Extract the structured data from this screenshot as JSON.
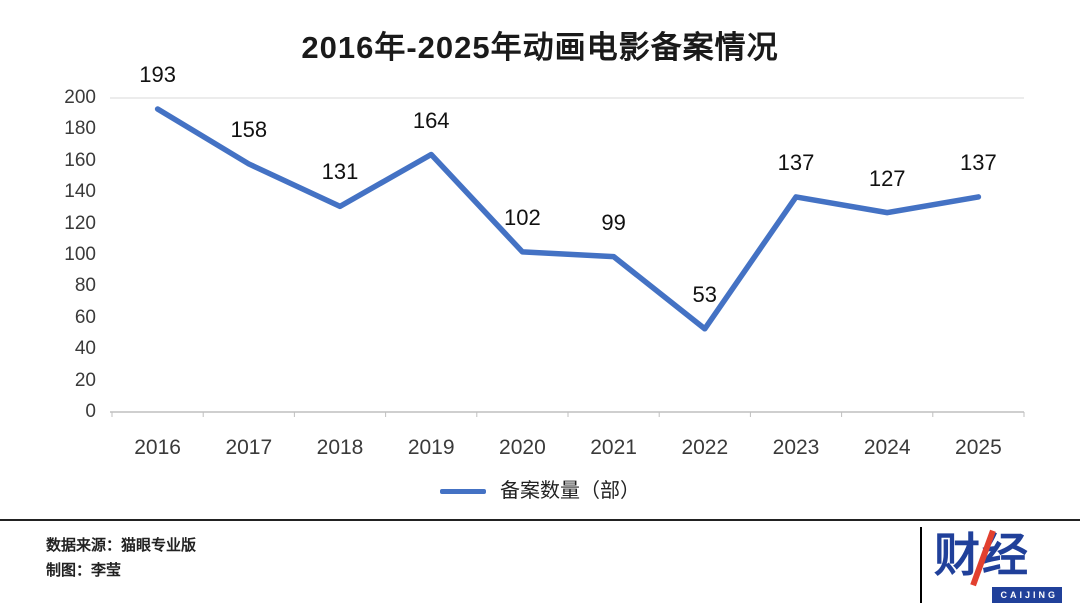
{
  "title": "2016年-2025年动画电影备案情况",
  "chart_data": {
    "type": "line",
    "title": "2016年-2025年动画电影备案情况",
    "categories": [
      "2016",
      "2017",
      "2018",
      "2019",
      "2020",
      "2021",
      "2022",
      "2023",
      "2024",
      "2025"
    ],
    "series": [
      {
        "name": "备案数量（部）",
        "values": [
          193,
          158,
          131,
          164,
          102,
          99,
          53,
          137,
          127,
          137
        ]
      }
    ],
    "ylim": [
      0,
      200
    ],
    "yticks": [
      0,
      20,
      40,
      60,
      80,
      100,
      120,
      140,
      160,
      180,
      200
    ],
    "line_color": "#4472c4",
    "grid": "top-gridline-only",
    "legend_position": "bottom",
    "data_labels": "above-points"
  },
  "legend": {
    "label": "备案数量（部）"
  },
  "footer": {
    "source": "数据来源：猫眼专业版",
    "credit": "制图：李莹"
  },
  "logo": {
    "text": "财经",
    "subtext": "CAIJING",
    "blue": "#20409a",
    "red": "#e2402f"
  }
}
